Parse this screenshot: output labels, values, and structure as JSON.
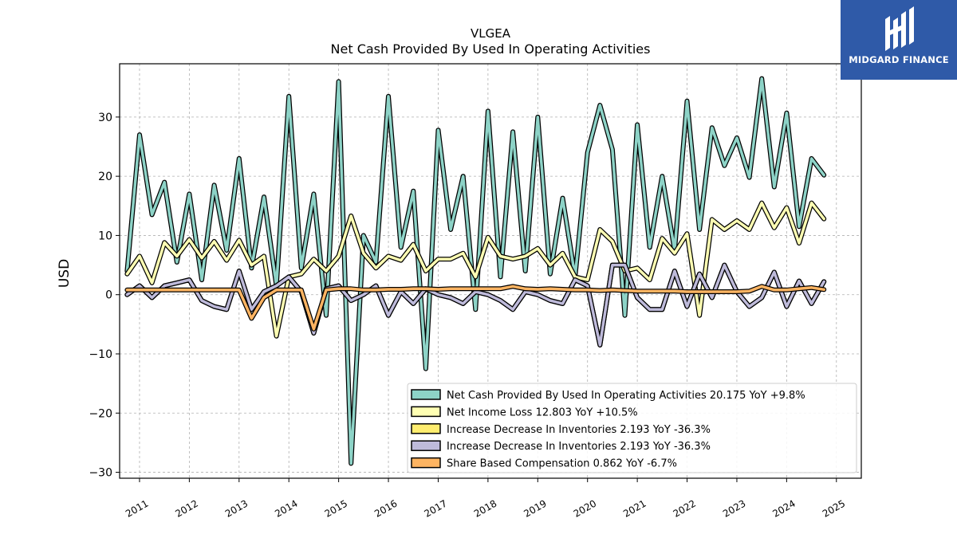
{
  "brand": {
    "logo_text": "MIDGARD FINANCE",
    "background": "#2f5aa8"
  },
  "chart_data": {
    "type": "line",
    "title": "VLGEA",
    "subtitle": "Net Cash Provided By Used In Operating Activities",
    "xlabel": "",
    "ylabel": "USD",
    "xlim": [
      2010.6,
      2025.5
    ],
    "ylim": [
      -31,
      39
    ],
    "x_ticks": [
      "2011",
      "2012",
      "2013",
      "2014",
      "2015",
      "2016",
      "2017",
      "2018",
      "2019",
      "2020",
      "2021",
      "2022",
      "2023",
      "2024",
      "2025"
    ],
    "y_ticks": [
      30,
      20,
      10,
      0,
      -10,
      -20,
      -30
    ],
    "y_tick_labels": [
      "30",
      "20",
      "10",
      "0",
      "−10",
      "−20",
      "−30"
    ],
    "grid": true,
    "legend_position": "lower-right",
    "series": [
      {
        "name": "Net Cash Provided By Used In Operating Activities",
        "legend": "Net Cash Provided By Used In Operating Activities  20.175 YoY +9.8%",
        "color": "#8dd3c7",
        "x": [
          2010.75,
          2011.0,
          2011.25,
          2011.5,
          2011.75,
          2012.0,
          2012.25,
          2012.5,
          2012.75,
          2013.0,
          2013.25,
          2013.5,
          2013.75,
          2014.0,
          2014.25,
          2014.5,
          2014.75,
          2015.0,
          2015.25,
          2015.5,
          2015.75,
          2016.0,
          2016.25,
          2016.5,
          2016.75,
          2017.0,
          2017.25,
          2017.5,
          2017.75,
          2018.0,
          2018.25,
          2018.5,
          2018.75,
          2019.0,
          2019.25,
          2019.5,
          2019.75,
          2020.0,
          2020.25,
          2020.5,
          2020.75,
          2021.0,
          2021.25,
          2021.5,
          2021.75,
          2022.0,
          2022.25,
          2022.5,
          2022.75,
          2023.0,
          2023.25,
          2023.5,
          2023.75,
          2024.0,
          2024.25,
          2024.5,
          2024.75
        ],
        "values": [
          4.0,
          27.0,
          13.5,
          19.0,
          5.5,
          17.0,
          2.5,
          18.5,
          7.5,
          23.0,
          4.5,
          16.5,
          1.5,
          33.5,
          4.5,
          17.0,
          -3.5,
          36.0,
          -28.5,
          10.0,
          5.5,
          33.5,
          8.0,
          17.5,
          -12.5,
          27.8,
          11.0,
          20.0,
          -2.5,
          31.0,
          3.0,
          27.5,
          4.0,
          30.0,
          3.5,
          16.3,
          3.0,
          24.0,
          32.0,
          24.5,
          -3.5,
          28.7,
          8.0,
          20.0,
          7.5,
          32.7,
          11.0,
          28.2,
          21.8,
          26.5,
          19.8,
          36.5,
          18.2,
          30.7,
          11.5,
          23.0,
          20.2
        ]
      },
      {
        "name": "Net Income Loss",
        "legend": "Net Income Loss  12.803 YoY +10.5%",
        "color": "#ffffb3",
        "x": [
          2010.75,
          2011.0,
          2011.25,
          2011.5,
          2011.75,
          2012.0,
          2012.25,
          2012.5,
          2012.75,
          2013.0,
          2013.25,
          2013.5,
          2013.75,
          2014.0,
          2014.25,
          2014.5,
          2014.75,
          2015.0,
          2015.25,
          2015.5,
          2015.75,
          2016.0,
          2016.25,
          2016.5,
          2016.75,
          2017.0,
          2017.25,
          2017.5,
          2017.75,
          2018.0,
          2018.25,
          2018.5,
          2018.75,
          2019.0,
          2019.25,
          2019.5,
          2019.75,
          2020.0,
          2020.25,
          2020.5,
          2020.75,
          2021.0,
          2021.25,
          2021.5,
          2021.75,
          2022.0,
          2022.25,
          2022.5,
          2022.75,
          2023.0,
          2023.25,
          2023.5,
          2023.75,
          2024.0,
          2024.25,
          2024.5,
          2024.75
        ],
        "values": [
          3.5,
          6.5,
          2.0,
          8.8,
          6.5,
          9.3,
          6.2,
          9.0,
          5.8,
          9.2,
          5.0,
          6.5,
          -7.0,
          3.0,
          3.5,
          6.0,
          4.0,
          6.5,
          13.3,
          7.0,
          4.5,
          6.5,
          5.8,
          8.5,
          4.0,
          6.0,
          6.0,
          7.0,
          3.0,
          9.7,
          6.5,
          6.0,
          6.5,
          7.8,
          5.0,
          7.0,
          3.0,
          2.5,
          11.0,
          9.0,
          4.0,
          4.5,
          2.5,
          9.5,
          7.0,
          10.3,
          -3.5,
          12.7,
          11.0,
          12.5,
          11.0,
          15.5,
          11.3,
          14.7,
          8.7,
          15.5,
          12.8
        ]
      },
      {
        "name": "Increase Decrease In Inventories",
        "legend": "Increase Decrease In Inventories  2.193 YoY -36.3%",
        "color": "#ffed6f",
        "x": [
          2010.75,
          2011.0,
          2011.25,
          2011.5,
          2011.75,
          2012.0,
          2012.25,
          2012.5,
          2012.75,
          2013.0,
          2013.25,
          2013.5,
          2013.75,
          2014.0,
          2014.25,
          2014.5,
          2014.75,
          2015.0,
          2015.25,
          2015.5,
          2015.75,
          2016.0,
          2016.25,
          2016.5,
          2016.75,
          2017.0,
          2017.25,
          2017.5,
          2017.75,
          2018.0,
          2018.25,
          2018.5,
          2018.75,
          2019.0,
          2019.25,
          2019.5,
          2019.75,
          2020.0,
          2020.25,
          2020.5,
          2020.75,
          2021.0,
          2021.25,
          2021.5,
          2021.75,
          2022.0,
          2022.25,
          2022.5,
          2022.75,
          2023.0,
          2023.25,
          2023.5,
          2023.75,
          2024.0,
          2024.25,
          2024.5,
          2024.75
        ],
        "values": [
          0.0,
          1.5,
          -0.5,
          1.5,
          2.0,
          2.5,
          -1.0,
          -2.0,
          -2.5,
          4.0,
          -2.5,
          0.5,
          1.5,
          3.0,
          0.5,
          -6.5,
          1.0,
          1.5,
          -1.0,
          0.0,
          1.5,
          -3.5,
          0.5,
          -1.5,
          1.0,
          0.0,
          -0.5,
          -1.5,
          0.5,
          0.0,
          -1.0,
          -2.5,
          0.5,
          0.0,
          -1.0,
          -1.5,
          2.5,
          1.5,
          -8.5,
          5.0,
          5.0,
          -0.5,
          -2.5,
          -2.5,
          4.0,
          -2.0,
          3.5,
          -0.5,
          5.0,
          0.5,
          -2.0,
          -0.5,
          3.8,
          -2.0,
          2.3,
          -1.5,
          2.2
        ]
      },
      {
        "name": "Increase Decrease In Inventories",
        "legend": "Increase Decrease In Inventories  2.193 YoY -36.3%",
        "color": "#bebada",
        "x": [
          2010.75,
          2011.0,
          2011.25,
          2011.5,
          2011.75,
          2012.0,
          2012.25,
          2012.5,
          2012.75,
          2013.0,
          2013.25,
          2013.5,
          2013.75,
          2014.0,
          2014.25,
          2014.5,
          2014.75,
          2015.0,
          2015.25,
          2015.5,
          2015.75,
          2016.0,
          2016.25,
          2016.5,
          2016.75,
          2017.0,
          2017.25,
          2017.5,
          2017.75,
          2018.0,
          2018.25,
          2018.5,
          2018.75,
          2019.0,
          2019.25,
          2019.5,
          2019.75,
          2020.0,
          2020.25,
          2020.5,
          2020.75,
          2021.0,
          2021.25,
          2021.5,
          2021.75,
          2022.0,
          2022.25,
          2022.5,
          2022.75,
          2023.0,
          2023.25,
          2023.5,
          2023.75,
          2024.0,
          2024.25,
          2024.5,
          2024.75
        ],
        "values": [
          0.0,
          1.5,
          -0.5,
          1.5,
          2.0,
          2.5,
          -1.0,
          -2.0,
          -2.5,
          4.0,
          -2.5,
          0.5,
          1.5,
          3.0,
          0.5,
          -6.5,
          1.0,
          1.5,
          -1.0,
          0.0,
          1.5,
          -3.5,
          0.5,
          -1.5,
          1.0,
          0.0,
          -0.5,
          -1.5,
          0.5,
          0.0,
          -1.0,
          -2.5,
          0.5,
          0.0,
          -1.0,
          -1.5,
          2.5,
          1.5,
          -8.5,
          5.0,
          5.0,
          -0.5,
          -2.5,
          -2.5,
          4.0,
          -2.0,
          3.5,
          -0.5,
          5.0,
          0.5,
          -2.0,
          -0.5,
          3.8,
          -2.0,
          2.3,
          -1.5,
          2.2
        ]
      },
      {
        "name": "Share Based Compensation",
        "legend": "Share Based Compensation  0.862 YoY -6.7%",
        "color": "#fdb462",
        "x": [
          2010.75,
          2011.0,
          2011.25,
          2011.5,
          2011.75,
          2012.0,
          2012.25,
          2012.5,
          2012.75,
          2013.0,
          2013.25,
          2013.5,
          2013.75,
          2014.0,
          2014.25,
          2014.5,
          2014.75,
          2015.0,
          2015.25,
          2015.5,
          2015.75,
          2016.0,
          2016.25,
          2016.5,
          2016.75,
          2017.0,
          2017.25,
          2017.5,
          2017.75,
          2018.0,
          2018.25,
          2018.5,
          2018.75,
          2019.0,
          2019.25,
          2019.5,
          2019.75,
          2020.0,
          2020.25,
          2020.5,
          2020.75,
          2021.0,
          2021.25,
          2021.5,
          2021.75,
          2022.0,
          2022.25,
          2022.5,
          2022.75,
          2023.0,
          2023.25,
          2023.5,
          2023.75,
          2024.0,
          2024.25,
          2024.5,
          2024.75
        ],
        "values": [
          0.8,
          0.8,
          0.8,
          0.8,
          0.8,
          0.8,
          0.8,
          0.8,
          0.8,
          0.8,
          -4.0,
          -0.5,
          0.8,
          0.8,
          0.8,
          -5.8,
          0.8,
          1.0,
          1.0,
          0.8,
          0.8,
          0.9,
          0.9,
          1.0,
          1.0,
          0.9,
          1.0,
          1.0,
          1.0,
          1.0,
          1.0,
          1.4,
          1.0,
          0.9,
          1.0,
          0.9,
          0.8,
          0.8,
          0.7,
          0.8,
          0.7,
          0.6,
          0.6,
          0.6,
          0.6,
          0.5,
          0.5,
          0.5,
          0.5,
          0.5,
          0.6,
          1.4,
          0.8,
          0.8,
          1.0,
          1.2,
          0.86
        ]
      }
    ]
  }
}
